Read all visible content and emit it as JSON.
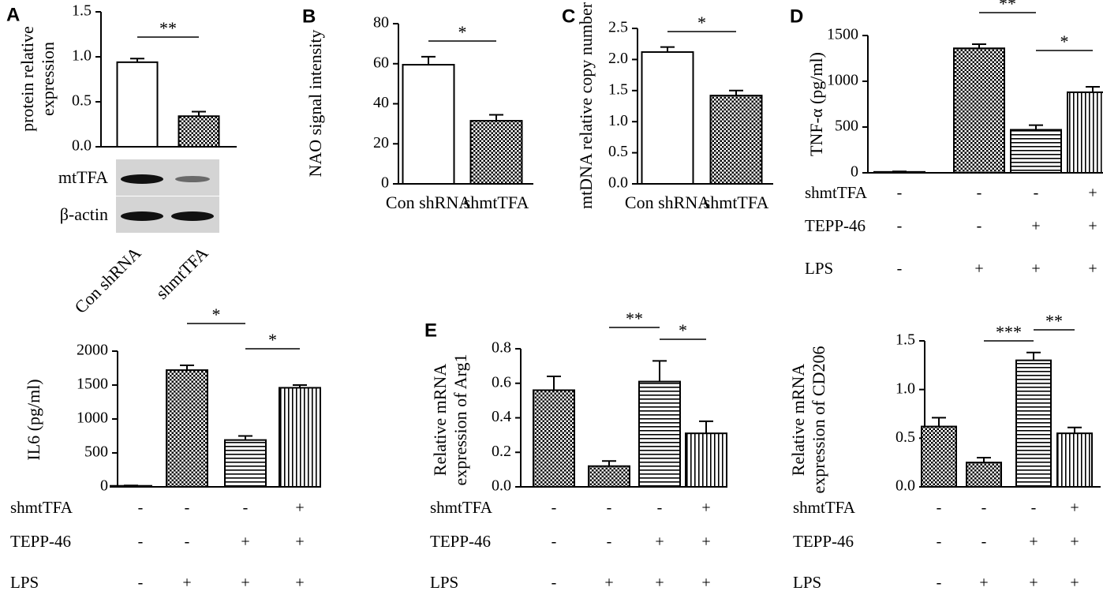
{
  "colors": {
    "ink": "#000000",
    "band": "#111111",
    "blot_bg": "#d4d4d4"
  },
  "chart_data": [
    {
      "id": "A",
      "letter": "A",
      "type": "bar",
      "ylabel": [
        "protein relative",
        "expression"
      ],
      "ylim": [
        0,
        1.5
      ],
      "yticks": [
        "0.0",
        "0.5",
        "1.0",
        "1.5"
      ],
      "categories": [
        "Con shRNA",
        "shmtTFA"
      ],
      "values": [
        0.94,
        0.34
      ],
      "errors": [
        0.04,
        0.05
      ],
      "patterns": [
        "none",
        "check"
      ],
      "significance": [
        {
          "from": 0,
          "to": 1,
          "label": "**"
        }
      ],
      "blot": {
        "rows": [
          "mtTFA",
          "β-actin"
        ]
      }
    },
    {
      "id": "B",
      "letter": "B",
      "type": "bar",
      "ylabel": [
        "NAO signal intensity"
      ],
      "ylim": [
        0,
        80
      ],
      "yticks": [
        "0",
        "20",
        "40",
        "60",
        "80"
      ],
      "categories": [
        "Con shRNA",
        "shmtTFA"
      ],
      "values": [
        59.5,
        31.5
      ],
      "errors": [
        4.0,
        3.0
      ],
      "patterns": [
        "none",
        "check"
      ],
      "significance": [
        {
          "from": 0,
          "to": 1,
          "label": "*"
        }
      ]
    },
    {
      "id": "C",
      "letter": "C",
      "type": "bar",
      "ylabel": [
        "mtDNA relative copy number"
      ],
      "ylim": [
        0,
        2.5
      ],
      "yticks": [
        "0.0",
        "0.5",
        "1.0",
        "1.5",
        "2.0",
        "2.5"
      ],
      "categories": [
        "Con shRNA",
        "shmtTFA"
      ],
      "values": [
        2.12,
        1.42
      ],
      "errors": [
        0.08,
        0.08
      ],
      "patterns": [
        "none",
        "check"
      ],
      "significance": [
        {
          "from": 0,
          "to": 1,
          "label": "*"
        }
      ]
    },
    {
      "id": "D",
      "letter": "D",
      "type": "bar",
      "ylabel": [
        "TNF-α (pg/ml)"
      ],
      "ylim": [
        0,
        1500
      ],
      "yticks": [
        "0",
        "500",
        "1000",
        "1500"
      ],
      "values": [
        10,
        1360,
        470,
        880
      ],
      "errors": [
        5,
        45,
        50,
        60
      ],
      "patterns": [
        "none",
        "check",
        "hstripe",
        "vstripe"
      ],
      "significance": [
        {
          "from": 1,
          "to": 2,
          "label": "**"
        },
        {
          "from": 2,
          "to": 3,
          "label": "*"
        }
      ],
      "conditions": [
        {
          "label": "shmtTFA",
          "values": [
            "-",
            "-",
            "-",
            "+"
          ]
        },
        {
          "label": "TEPP-46",
          "values": [
            "-",
            "-",
            "+",
            "+"
          ]
        },
        {
          "label": "LPS",
          "values": [
            "-",
            "+",
            "+",
            "+"
          ]
        }
      ]
    },
    {
      "id": "IL6",
      "letter": "",
      "type": "bar",
      "ylabel": [
        "IL6 (pg/ml)"
      ],
      "ylim": [
        0,
        2000
      ],
      "yticks": [
        "0",
        "500",
        "1000",
        "1500",
        "2000"
      ],
      "values": [
        15,
        1720,
        690,
        1460
      ],
      "errors": [
        5,
        70,
        60,
        40
      ],
      "patterns": [
        "none",
        "check",
        "hstripe",
        "vstripe"
      ],
      "significance": [
        {
          "from": 1,
          "to": 2,
          "label": "*"
        },
        {
          "from": 2,
          "to": 3,
          "label": "*"
        }
      ],
      "conditions": [
        {
          "label": "shmtTFA",
          "values": [
            "-",
            "-",
            "-",
            "+"
          ]
        },
        {
          "label": "TEPP-46",
          "values": [
            "-",
            "-",
            "+",
            "+"
          ]
        },
        {
          "label": "LPS",
          "values": [
            "-",
            "+",
            "+",
            "+"
          ]
        }
      ]
    },
    {
      "id": "E",
      "letter": "E",
      "type": "bar",
      "ylabel": [
        "Relative mRNA",
        "expression of Arg1"
      ],
      "ylim": [
        0,
        0.8
      ],
      "yticks": [
        "0.0",
        "0.2",
        "0.4",
        "0.6",
        "0.8"
      ],
      "values": [
        0.56,
        0.12,
        0.61,
        0.31
      ],
      "errors": [
        0.08,
        0.03,
        0.12,
        0.07
      ],
      "patterns": [
        "check",
        "check",
        "hstripe",
        "vstripe"
      ],
      "significance": [
        {
          "from": 1,
          "to": 2,
          "label": "**"
        },
        {
          "from": 2,
          "to": 3,
          "label": "*"
        }
      ],
      "conditions": [
        {
          "label": "shmtTFA",
          "values": [
            "-",
            "-",
            "-",
            "+"
          ]
        },
        {
          "label": "TEPP-46",
          "values": [
            "-",
            "-",
            "+",
            "+"
          ]
        },
        {
          "label": "LPS",
          "values": [
            "-",
            "+",
            "+",
            "+"
          ]
        }
      ]
    },
    {
      "id": "CD206",
      "letter": "",
      "type": "bar",
      "ylabel": [
        "Relative mRNA",
        "expression of CD206"
      ],
      "ylim": [
        0,
        1.5
      ],
      "yticks": [
        "0.0",
        "0.5",
        "1.0",
        "1.5"
      ],
      "values": [
        0.62,
        0.25,
        1.3,
        0.55
      ],
      "errors": [
        0.09,
        0.05,
        0.08,
        0.06
      ],
      "patterns": [
        "check",
        "check",
        "hstripe",
        "vstripe"
      ],
      "significance": [
        {
          "from": 1,
          "to": 2,
          "label": "***"
        },
        {
          "from": 2,
          "to": 3,
          "label": "**"
        }
      ],
      "conditions": [
        {
          "label": "shmtTFA",
          "values": [
            "-",
            "-",
            "-",
            "+"
          ]
        },
        {
          "label": "TEPP-46",
          "values": [
            "-",
            "-",
            "+",
            "+"
          ]
        },
        {
          "label": "LPS",
          "values": [
            "-",
            "+",
            "+",
            "+"
          ]
        }
      ]
    }
  ]
}
